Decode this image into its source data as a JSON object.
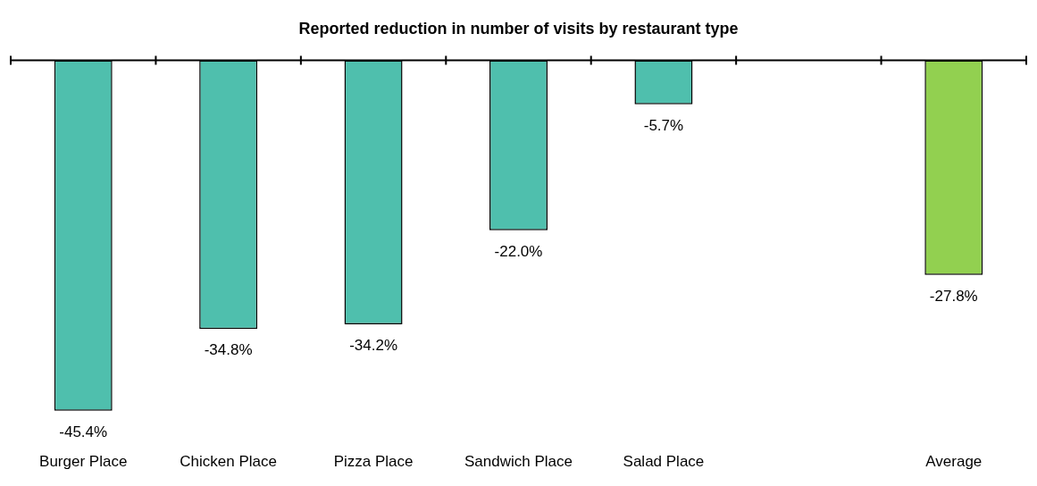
{
  "chart_data": {
    "type": "bar",
    "title": "Reported reduction in number of visits by restaurant type",
    "categories": [
      "Burger Place",
      "Chicken Place",
      "Pizza Place",
      "Sandwich Place",
      "Salad Place",
      null,
      "Average"
    ],
    "values": [
      -45.4,
      -34.8,
      -34.2,
      -22.0,
      -5.7,
      null,
      -27.8
    ],
    "colors": [
      "#4fbfad",
      "#4fbfad",
      "#4fbfad",
      "#4fbfad",
      "#4fbfad",
      "#4fbfad",
      "#92d050"
    ],
    "value_labels": [
      "-45.4%",
      "-34.8%",
      "-34.2%",
      "-22.0%",
      "-5.7%",
      null,
      "-27.8%"
    ],
    "grid": false,
    "legend": false
  }
}
